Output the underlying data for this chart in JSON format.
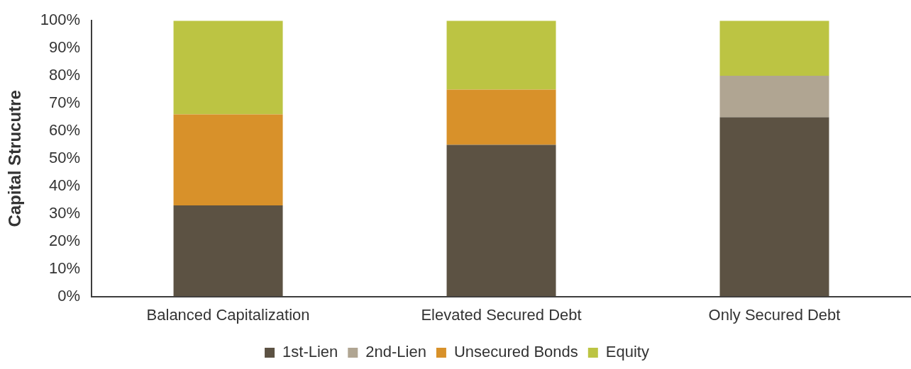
{
  "chart_data": {
    "type": "bar",
    "stacked": true,
    "ylabel": "Capital Strucutre",
    "categories": [
      "Balanced Capitalization",
      "Elevated Secured Debt",
      "Only Secured Debt"
    ],
    "series": [
      {
        "name": "1st-Lien",
        "color": "#5c5243",
        "values": [
          33,
          55,
          65
        ]
      },
      {
        "name": "2nd-Lien",
        "color": "#b0a592",
        "values": [
          0,
          0,
          15
        ]
      },
      {
        "name": "Unsecured Bonds",
        "color": "#d8912a",
        "values": [
          33,
          20,
          0
        ]
      },
      {
        "name": "Equity",
        "color": "#bcc443",
        "values": [
          34,
          25,
          20
        ]
      }
    ],
    "ylim": [
      0,
      100
    ],
    "yticks": [
      {
        "value": 0,
        "label": "0%"
      },
      {
        "value": 10,
        "label": "10%"
      },
      {
        "value": 20,
        "label": "20%"
      },
      {
        "value": 30,
        "label": "30%"
      },
      {
        "value": 40,
        "label": "40%"
      },
      {
        "value": 50,
        "label": "50%"
      },
      {
        "value": 60,
        "label": "60%"
      },
      {
        "value": 70,
        "label": "70%"
      },
      {
        "value": 80,
        "label": "80%"
      },
      {
        "value": 90,
        "label": "90%"
      },
      {
        "value": 100,
        "label": "100%"
      }
    ],
    "grid": false,
    "legend": "bottom"
  }
}
